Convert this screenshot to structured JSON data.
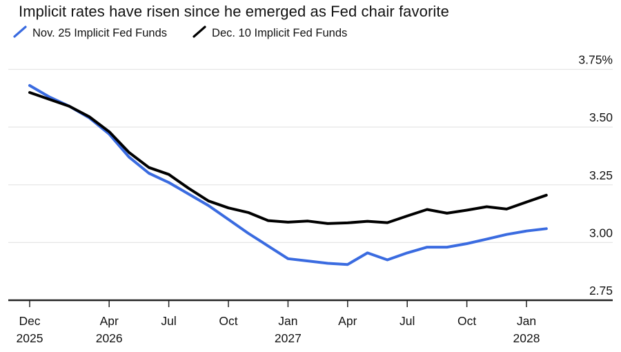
{
  "header": {
    "title": "Implicit rates have risen since he emerged as Fed chair favorite"
  },
  "legend": {
    "items": [
      {
        "label": "Nov. 25 Implicit Fed Funds",
        "color": "#3a6be0"
      },
      {
        "label": "Dec. 10 Implicit Fed Funds",
        "color": "#000000"
      }
    ]
  },
  "chart_data": {
    "type": "line",
    "title": "Implicit rates have risen since he emerged as Fed chair favorite",
    "x": [
      "Dec 2025",
      "Jan 2026",
      "Feb 2026",
      "Mar 2026",
      "Apr 2026",
      "May 2026",
      "Jun 2026",
      "Jul 2026",
      "Aug 2026",
      "Sep 2026",
      "Oct 2026",
      "Nov 2026",
      "Dec 2026",
      "Jan 2027",
      "Feb 2027",
      "Mar 2027",
      "Apr 2027",
      "May 2027",
      "Jun 2027",
      "Jul 2027",
      "Aug 2027",
      "Sep 2027",
      "Oct 2027",
      "Nov 2027",
      "Dec 2027",
      "Jan 2028",
      "Feb 2028"
    ],
    "series": [
      {
        "name": "Nov. 25 Implicit Fed Funds",
        "color": "#3a6be0",
        "values": [
          3.68,
          3.63,
          3.59,
          3.54,
          3.47,
          3.37,
          3.3,
          3.26,
          3.21,
          3.16,
          3.1,
          3.04,
          2.985,
          2.93,
          2.92,
          2.91,
          2.905,
          2.955,
          2.925,
          2.955,
          2.98,
          2.98,
          2.995,
          3.015,
          3.035,
          3.05,
          3.06
        ]
      },
      {
        "name": "Dec. 10 Implicit Fed Funds",
        "color": "#000000",
        "values": [
          3.65,
          3.62,
          3.59,
          3.545,
          3.48,
          3.39,
          3.325,
          3.295,
          3.235,
          3.18,
          3.15,
          3.13,
          3.095,
          3.088,
          3.093,
          3.082,
          3.085,
          3.092,
          3.086,
          3.115,
          3.143,
          3.127,
          3.14,
          3.155,
          3.145,
          3.175,
          3.205
        ]
      }
    ],
    "ylabel": "",
    "xlabel": "",
    "ylim": [
      2.75,
      3.75
    ],
    "y_ticks": [
      {
        "value": 3.75,
        "label": "3.75%"
      },
      {
        "value": 3.5,
        "label": "3.50"
      },
      {
        "value": 3.25,
        "label": "3.25"
      },
      {
        "value": 3.0,
        "label": "3.00"
      },
      {
        "value": 2.75,
        "label": "2.75"
      }
    ],
    "x_ticks": [
      {
        "index": 0,
        "label": "Dec",
        "year": "2025"
      },
      {
        "index": 4,
        "label": "Apr",
        "year": "2026"
      },
      {
        "index": 7,
        "label": "Jul",
        "year": ""
      },
      {
        "index": 10,
        "label": "Oct",
        "year": ""
      },
      {
        "index": 13,
        "label": "Jan",
        "year": "2027"
      },
      {
        "index": 16,
        "label": "Apr",
        "year": ""
      },
      {
        "index": 19,
        "label": "Jul",
        "year": ""
      },
      {
        "index": 22,
        "label": "Oct",
        "year": ""
      },
      {
        "index": 25,
        "label": "Jan",
        "year": "2028"
      }
    ],
    "grid": "horizontal",
    "legend_position": "top-left"
  },
  "colors": {
    "background": "#ffffff",
    "text": "#111111",
    "gridline": "#e6e6e6",
    "axis_line": "#222222",
    "series_blue": "#3a6be0",
    "series_black": "#000000"
  }
}
